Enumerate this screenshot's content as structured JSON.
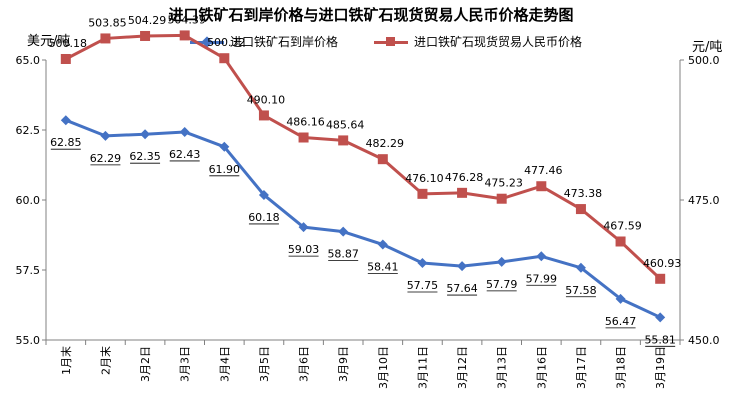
{
  "chart_data": {
    "type": "line",
    "title": "进口铁矿石到岸价格与进口铁矿石现货贸易人民币价格走势图",
    "ylabel_left": "美元/吨",
    "ylabel_right": "元/吨",
    "categories": [
      "1月末",
      "2月末",
      "3月2日",
      "3月3日",
      "3月4日",
      "3月5日",
      "3月6日",
      "3月9日",
      "3月10日",
      "3月11日",
      "3月12日",
      "3月13日",
      "3月16日",
      "3月17日",
      "3月18日",
      "3月19日"
    ],
    "left_axis": {
      "min": 55.0,
      "max": 65.0,
      "ticks": [
        "55.0",
        "57.5",
        "60.0",
        "62.5",
        "65.0"
      ]
    },
    "right_axis": {
      "min": 450.0,
      "max": 500.0,
      "ticks": [
        "450.0",
        "475.0",
        "500.0"
      ]
    },
    "series": [
      {
        "name": "进口铁矿石到岸价格",
        "axis": "left",
        "color": "#4472C4",
        "marker": "diamond",
        "values": [
          62.85,
          62.29,
          62.35,
          62.43,
          61.9,
          60.18,
          59.03,
          58.87,
          58.41,
          57.75,
          57.64,
          57.79,
          57.99,
          57.58,
          56.47,
          55.81
        ],
        "labels": [
          "62.85",
          "62.29",
          "62.35",
          "62.43",
          "61.90",
          "60.18",
          "59.03",
          "58.87",
          "58.41",
          "57.75",
          "57.64",
          "57.79",
          "57.99",
          "57.58",
          "56.47",
          "55.81"
        ]
      },
      {
        "name": "进口铁矿石现货贸易人民币价格",
        "axis": "right",
        "color": "#C0504D",
        "marker": "square",
        "values": [
          500.18,
          503.85,
          504.29,
          504.39,
          500.32,
          490.1,
          486.16,
          485.64,
          482.29,
          476.1,
          476.28,
          475.23,
          477.46,
          473.38,
          467.59,
          460.93
        ],
        "labels": [
          "500.18",
          "503.85",
          "504.29",
          "504.39",
          "500.32",
          "490.10",
          "486.16",
          "485.64",
          "482.29",
          "476.10",
          "476.28",
          "475.23",
          "477.46",
          "473.38",
          "467.59",
          "460.93"
        ]
      }
    ],
    "grid": false,
    "legend": "top"
  }
}
